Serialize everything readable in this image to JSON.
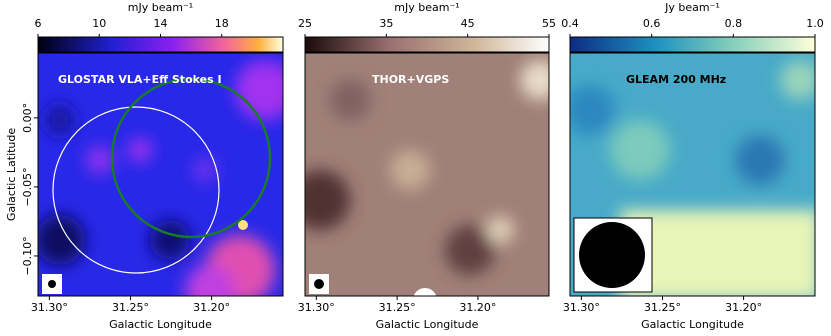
{
  "chart_data": [
    {
      "type": "image",
      "label": "GLOSTAR VLA+Eff Stokes I",
      "colorbar_label": "mJy beam⁻¹",
      "clim": [
        6,
        22
      ],
      "cticks": [
        6,
        10,
        14,
        18
      ],
      "xlim": [
        31.307,
        31.156
      ],
      "xticks": [
        {
          "value": 31.3,
          "label": "31.30°"
        },
        {
          "value": 31.25,
          "label": "31.25°"
        },
        {
          "value": 31.2,
          "label": "31.20°"
        }
      ],
      "ylim": [
        -0.129,
        0.047
      ],
      "yticks": [
        {
          "value": 0,
          "label": "0.00°"
        },
        {
          "value": -0.05,
          "label": "−0.05°"
        },
        {
          "value": -0.1,
          "label": "−0.10°"
        }
      ],
      "xlabel": "Galactic Longitude",
      "ylabel": "Galactic Latitude"
    },
    {
      "type": "image",
      "label": "THOR+VGPS",
      "colorbar_label": "mJy beam⁻¹",
      "clim": [
        25,
        55
      ],
      "cticks": [
        25,
        35,
        45,
        55
      ],
      "xlim": [
        31.307,
        31.156
      ],
      "xticks": [
        {
          "value": 31.3,
          "label": "31.30°"
        },
        {
          "value": 31.25,
          "label": "31.25°"
        },
        {
          "value": 31.2,
          "label": "31.20°"
        }
      ],
      "ylim": [
        -0.129,
        0.047
      ],
      "xlabel": "Galactic Longitude"
    },
    {
      "type": "image",
      "label": "GLEAM 200 MHz",
      "colorbar_label": "Jy beam⁻¹",
      "clim": [
        0.4,
        1.0
      ],
      "cticks": [
        0.4,
        0.6,
        0.8,
        {
          "value": 1,
          "label": "1.0"
        }
      ],
      "xlim": [
        31.307,
        31.156
      ],
      "xticks": [
        {
          "value": 31.3,
          "label": "31.30°"
        },
        {
          "value": 31.25,
          "label": "31.25°"
        },
        {
          "value": 31.2,
          "label": "31.20°"
        }
      ],
      "ylim": [
        -0.129,
        0.047
      ],
      "xlabel": "Galactic Longitude"
    }
  ]
}
